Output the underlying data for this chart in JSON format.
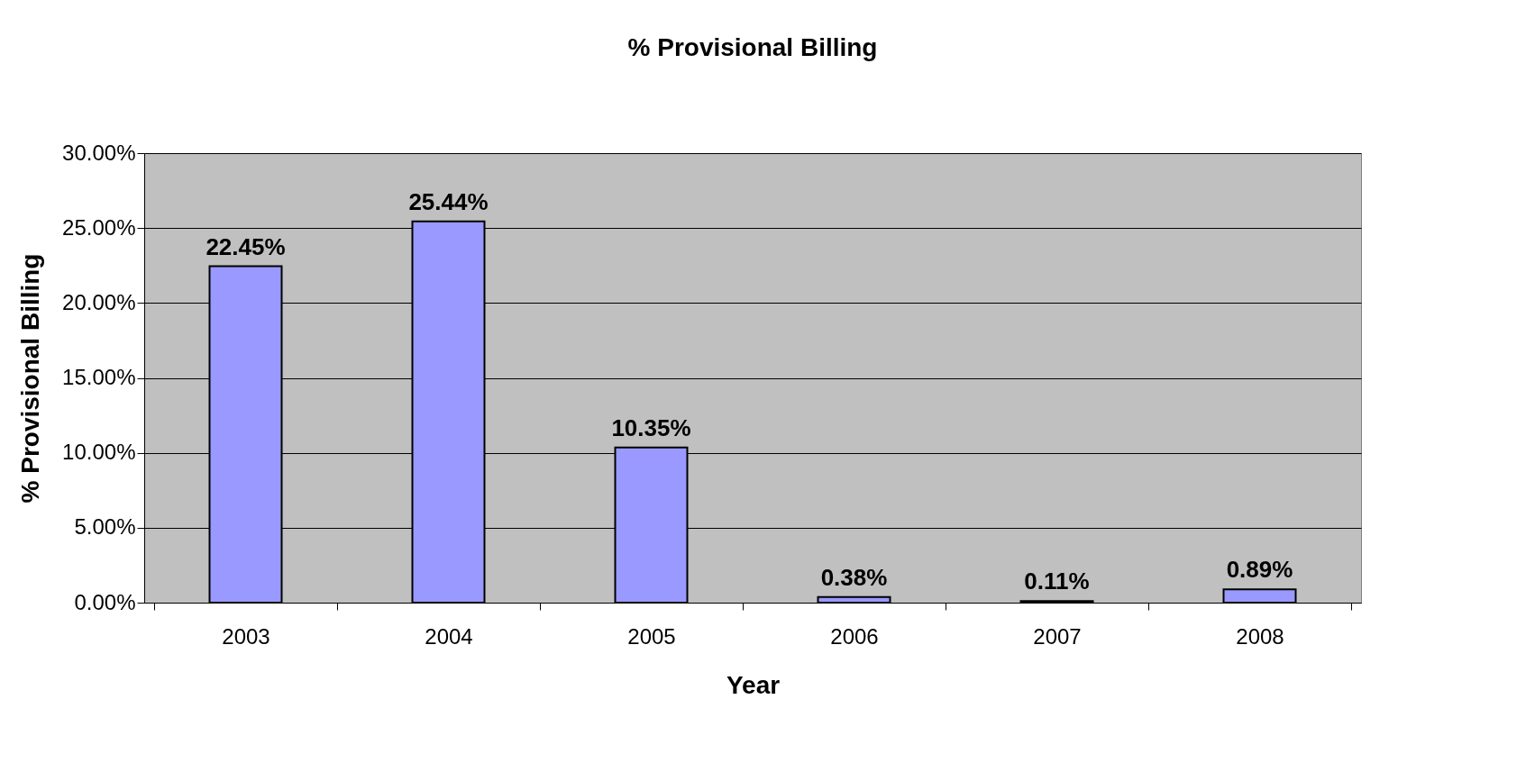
{
  "chart_data": {
    "type": "bar",
    "title": "% Provisional Billing",
    "xlabel": "Year",
    "ylabel": "% Provisional Billing",
    "categories": [
      "2003",
      "2004",
      "2005",
      "2006",
      "2007",
      "2008"
    ],
    "values": [
      22.45,
      25.44,
      10.35,
      0.38,
      0.11,
      0.89
    ],
    "value_labels": [
      "22.45%",
      "25.44%",
      "10.35%",
      "0.38%",
      "0.11%",
      "0.89%"
    ],
    "color": "#9999ff",
    "ylim": [
      0,
      30
    ],
    "yticks": [
      {
        "value": 0,
        "label": "0.00%"
      },
      {
        "value": 5,
        "label": "5.00%"
      },
      {
        "value": 10,
        "label": "10.00%"
      },
      {
        "value": 15,
        "label": "15.00%"
      },
      {
        "value": 20,
        "label": "20.00%"
      },
      {
        "value": 25,
        "label": "25.00%"
      },
      {
        "value": 30,
        "label": "30.00%"
      }
    ],
    "grid": "y"
  }
}
